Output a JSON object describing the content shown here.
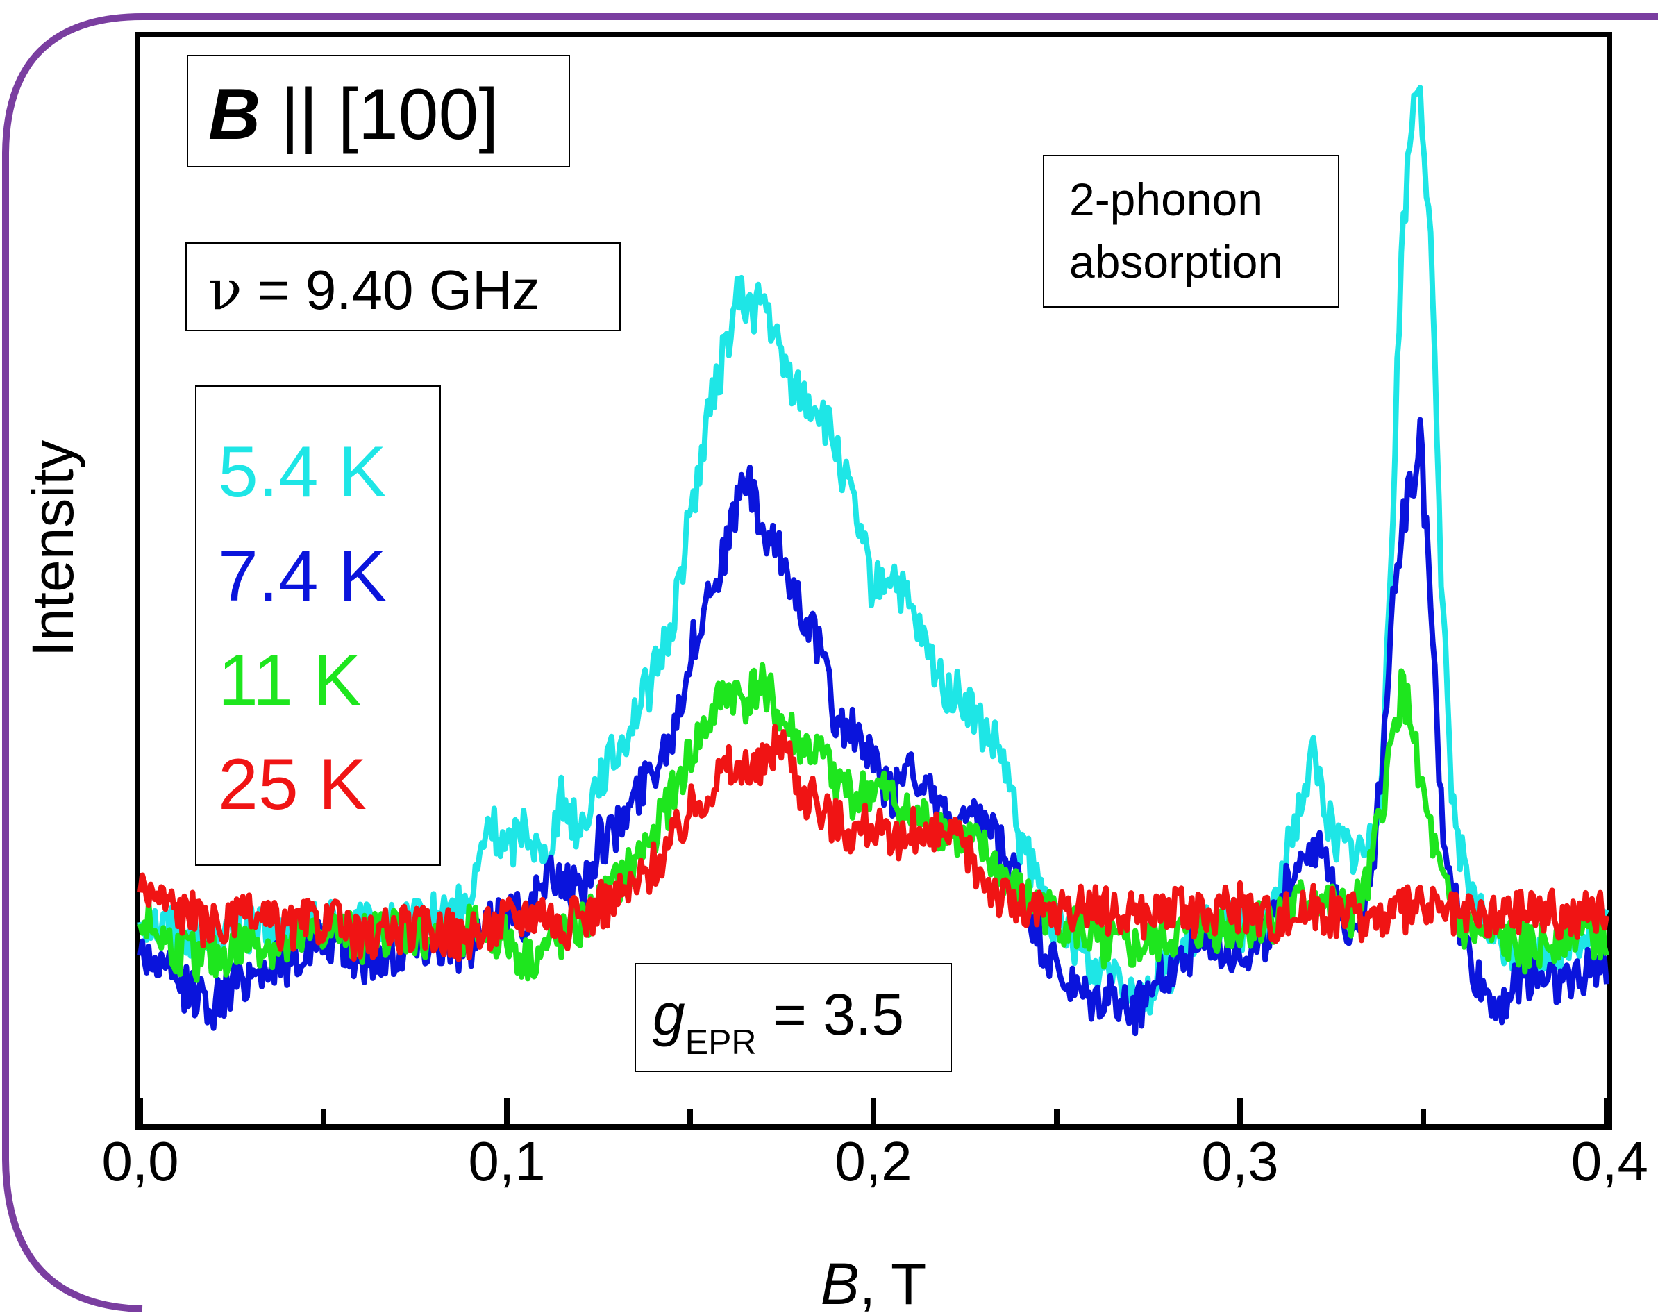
{
  "chart_data": {
    "type": "line",
    "xlabel_italic": "B",
    "xlabel_rest": ", T",
    "ylabel": "Intensity",
    "xlim": [
      0.0,
      0.4
    ],
    "ylim": [
      0,
      1
    ],
    "x_ticks": [
      "0,0",
      "0,1",
      "0,2",
      "0,3",
      "0,4"
    ],
    "x_tick_values": [
      0.0,
      0.1,
      0.2,
      0.3,
      0.4
    ],
    "x_minor_tick_values": [
      0.05,
      0.15,
      0.25,
      0.35
    ],
    "grid": false,
    "legend_position": "left",
    "annotations": {
      "orientation": {
        "bold_part": "B",
        "rest": " || [100]"
      },
      "frequency": {
        "symbol": "ν",
        "rest": " = 9.40 GHz"
      },
      "phonon": {
        "line1": "2-phonon",
        "line2": "absorption"
      },
      "g_factor": {
        "g": "g",
        "sub": "EPR",
        "rest": " = 3.5"
      }
    },
    "series": [
      {
        "name": "5.4 K",
        "color": "#1ee6e6",
        "points": [
          [
            0.0,
            0.19
          ],
          [
            0.01,
            0.18
          ],
          [
            0.02,
            0.17
          ],
          [
            0.03,
            0.18
          ],
          [
            0.04,
            0.17
          ],
          [
            0.05,
            0.19
          ],
          [
            0.06,
            0.18
          ],
          [
            0.07,
            0.18
          ],
          [
            0.08,
            0.19
          ],
          [
            0.09,
            0.2
          ],
          [
            0.095,
            0.28
          ],
          [
            0.1,
            0.25
          ],
          [
            0.105,
            0.28
          ],
          [
            0.11,
            0.24
          ],
          [
            0.115,
            0.3
          ],
          [
            0.12,
            0.27
          ],
          [
            0.125,
            0.32
          ],
          [
            0.13,
            0.34
          ],
          [
            0.135,
            0.38
          ],
          [
            0.14,
            0.41
          ],
          [
            0.145,
            0.46
          ],
          [
            0.15,
            0.56
          ],
          [
            0.155,
            0.65
          ],
          [
            0.16,
            0.72
          ],
          [
            0.163,
            0.76
          ],
          [
            0.167,
            0.75
          ],
          [
            0.17,
            0.76
          ],
          [
            0.175,
            0.7
          ],
          [
            0.18,
            0.67
          ],
          [
            0.185,
            0.66
          ],
          [
            0.19,
            0.62
          ],
          [
            0.195,
            0.56
          ],
          [
            0.2,
            0.49
          ],
          [
            0.205,
            0.51
          ],
          [
            0.21,
            0.47
          ],
          [
            0.215,
            0.43
          ],
          [
            0.22,
            0.4
          ],
          [
            0.225,
            0.39
          ],
          [
            0.23,
            0.36
          ],
          [
            0.235,
            0.34
          ],
          [
            0.24,
            0.26
          ],
          [
            0.245,
            0.22
          ],
          [
            0.25,
            0.18
          ],
          [
            0.255,
            0.17
          ],
          [
            0.26,
            0.14
          ],
          [
            0.265,
            0.15
          ],
          [
            0.27,
            0.13
          ],
          [
            0.275,
            0.12
          ],
          [
            0.28,
            0.14
          ],
          [
            0.285,
            0.16
          ],
          [
            0.29,
            0.18
          ],
          [
            0.295,
            0.19
          ],
          [
            0.3,
            0.18
          ],
          [
            0.305,
            0.18
          ],
          [
            0.31,
            0.2
          ],
          [
            0.315,
            0.28
          ],
          [
            0.32,
            0.34
          ],
          [
            0.325,
            0.27
          ],
          [
            0.33,
            0.25
          ],
          [
            0.335,
            0.25
          ],
          [
            0.338,
            0.3
          ],
          [
            0.341,
            0.5
          ],
          [
            0.344,
            0.8
          ],
          [
            0.347,
            0.93
          ],
          [
            0.349,
            0.97
          ],
          [
            0.352,
            0.8
          ],
          [
            0.355,
            0.5
          ],
          [
            0.358,
            0.3
          ],
          [
            0.362,
            0.21
          ],
          [
            0.37,
            0.17
          ],
          [
            0.38,
            0.15
          ],
          [
            0.39,
            0.17
          ],
          [
            0.4,
            0.18
          ]
        ]
      },
      {
        "name": "7.4 K",
        "color": "#0a14dc",
        "points": [
          [
            0.0,
            0.16
          ],
          [
            0.01,
            0.13
          ],
          [
            0.02,
            0.11
          ],
          [
            0.03,
            0.14
          ],
          [
            0.04,
            0.15
          ],
          [
            0.05,
            0.17
          ],
          [
            0.06,
            0.15
          ],
          [
            0.07,
            0.16
          ],
          [
            0.08,
            0.17
          ],
          [
            0.09,
            0.16
          ],
          [
            0.1,
            0.2
          ],
          [
            0.105,
            0.19
          ],
          [
            0.11,
            0.22
          ],
          [
            0.115,
            0.23
          ],
          [
            0.12,
            0.21
          ],
          [
            0.125,
            0.26
          ],
          [
            0.13,
            0.27
          ],
          [
            0.135,
            0.3
          ],
          [
            0.14,
            0.33
          ],
          [
            0.145,
            0.36
          ],
          [
            0.15,
            0.43
          ],
          [
            0.155,
            0.49
          ],
          [
            0.16,
            0.53
          ],
          [
            0.165,
            0.6
          ],
          [
            0.17,
            0.54
          ],
          [
            0.175,
            0.52
          ],
          [
            0.18,
            0.48
          ],
          [
            0.185,
            0.44
          ],
          [
            0.19,
            0.37
          ],
          [
            0.195,
            0.36
          ],
          [
            0.2,
            0.33
          ],
          [
            0.205,
            0.3
          ],
          [
            0.21,
            0.34
          ],
          [
            0.215,
            0.3
          ],
          [
            0.22,
            0.28
          ],
          [
            0.225,
            0.27
          ],
          [
            0.23,
            0.28
          ],
          [
            0.235,
            0.25
          ],
          [
            0.24,
            0.22
          ],
          [
            0.245,
            0.17
          ],
          [
            0.25,
            0.14
          ],
          [
            0.255,
            0.12
          ],
          [
            0.26,
            0.11
          ],
          [
            0.265,
            0.12
          ],
          [
            0.27,
            0.1
          ],
          [
            0.275,
            0.12
          ],
          [
            0.28,
            0.14
          ],
          [
            0.29,
            0.17
          ],
          [
            0.3,
            0.16
          ],
          [
            0.305,
            0.16
          ],
          [
            0.31,
            0.19
          ],
          [
            0.315,
            0.24
          ],
          [
            0.32,
            0.26
          ],
          [
            0.325,
            0.22
          ],
          [
            0.33,
            0.18
          ],
          [
            0.335,
            0.21
          ],
          [
            0.338,
            0.3
          ],
          [
            0.341,
            0.45
          ],
          [
            0.344,
            0.55
          ],
          [
            0.347,
            0.59
          ],
          [
            0.349,
            0.64
          ],
          [
            0.352,
            0.48
          ],
          [
            0.355,
            0.28
          ],
          [
            0.36,
            0.18
          ],
          [
            0.365,
            0.13
          ],
          [
            0.37,
            0.11
          ],
          [
            0.38,
            0.14
          ],
          [
            0.39,
            0.13
          ],
          [
            0.4,
            0.15
          ]
        ]
      },
      {
        "name": "11 K",
        "color": "#1ee61e",
        "points": [
          [
            0.0,
            0.19
          ],
          [
            0.01,
            0.16
          ],
          [
            0.02,
            0.15
          ],
          [
            0.03,
            0.17
          ],
          [
            0.04,
            0.16
          ],
          [
            0.05,
            0.18
          ],
          [
            0.06,
            0.17
          ],
          [
            0.07,
            0.18
          ],
          [
            0.08,
            0.17
          ],
          [
            0.09,
            0.18
          ],
          [
            0.1,
            0.17
          ],
          [
            0.105,
            0.15
          ],
          [
            0.11,
            0.16
          ],
          [
            0.115,
            0.17
          ],
          [
            0.12,
            0.18
          ],
          [
            0.125,
            0.2
          ],
          [
            0.13,
            0.22
          ],
          [
            0.135,
            0.24
          ],
          [
            0.14,
            0.27
          ],
          [
            0.145,
            0.3
          ],
          [
            0.15,
            0.34
          ],
          [
            0.155,
            0.37
          ],
          [
            0.16,
            0.4
          ],
          [
            0.165,
            0.39
          ],
          [
            0.17,
            0.41
          ],
          [
            0.175,
            0.37
          ],
          [
            0.18,
            0.35
          ],
          [
            0.185,
            0.34
          ],
          [
            0.19,
            0.32
          ],
          [
            0.195,
            0.3
          ],
          [
            0.2,
            0.31
          ],
          [
            0.205,
            0.3
          ],
          [
            0.21,
            0.28
          ],
          [
            0.215,
            0.28
          ],
          [
            0.22,
            0.27
          ],
          [
            0.225,
            0.26
          ],
          [
            0.23,
            0.25
          ],
          [
            0.235,
            0.23
          ],
          [
            0.24,
            0.21
          ],
          [
            0.25,
            0.19
          ],
          [
            0.26,
            0.17
          ],
          [
            0.27,
            0.16
          ],
          [
            0.28,
            0.17
          ],
          [
            0.29,
            0.18
          ],
          [
            0.3,
            0.18
          ],
          [
            0.31,
            0.19
          ],
          [
            0.32,
            0.21
          ],
          [
            0.325,
            0.2
          ],
          [
            0.33,
            0.19
          ],
          [
            0.335,
            0.22
          ],
          [
            0.338,
            0.28
          ],
          [
            0.341,
            0.34
          ],
          [
            0.344,
            0.4
          ],
          [
            0.347,
            0.37
          ],
          [
            0.35,
            0.3
          ],
          [
            0.355,
            0.22
          ],
          [
            0.36,
            0.18
          ],
          [
            0.37,
            0.17
          ],
          [
            0.38,
            0.16
          ],
          [
            0.39,
            0.18
          ],
          [
            0.4,
            0.17
          ]
        ]
      },
      {
        "name": "25 K",
        "color": "#f01414",
        "points": [
          [
            0.0,
            0.22
          ],
          [
            0.01,
            0.2
          ],
          [
            0.02,
            0.18
          ],
          [
            0.03,
            0.19
          ],
          [
            0.04,
            0.18
          ],
          [
            0.05,
            0.19
          ],
          [
            0.06,
            0.17
          ],
          [
            0.07,
            0.18
          ],
          [
            0.08,
            0.18
          ],
          [
            0.09,
            0.17
          ],
          [
            0.1,
            0.19
          ],
          [
            0.11,
            0.2
          ],
          [
            0.115,
            0.18
          ],
          [
            0.12,
            0.19
          ],
          [
            0.125,
            0.2
          ],
          [
            0.13,
            0.21
          ],
          [
            0.135,
            0.22
          ],
          [
            0.14,
            0.24
          ],
          [
            0.145,
            0.26
          ],
          [
            0.15,
            0.29
          ],
          [
            0.155,
            0.31
          ],
          [
            0.16,
            0.33
          ],
          [
            0.165,
            0.32
          ],
          [
            0.17,
            0.33
          ],
          [
            0.175,
            0.36
          ],
          [
            0.18,
            0.31
          ],
          [
            0.185,
            0.29
          ],
          [
            0.19,
            0.28
          ],
          [
            0.195,
            0.27
          ],
          [
            0.2,
            0.28
          ],
          [
            0.205,
            0.25
          ],
          [
            0.21,
            0.27
          ],
          [
            0.215,
            0.26
          ],
          [
            0.22,
            0.27
          ],
          [
            0.225,
            0.25
          ],
          [
            0.23,
            0.23
          ],
          [
            0.235,
            0.21
          ],
          [
            0.24,
            0.2
          ],
          [
            0.25,
            0.19
          ],
          [
            0.26,
            0.2
          ],
          [
            0.27,
            0.19
          ],
          [
            0.28,
            0.2
          ],
          [
            0.29,
            0.19
          ],
          [
            0.3,
            0.2
          ],
          [
            0.31,
            0.19
          ],
          [
            0.32,
            0.2
          ],
          [
            0.33,
            0.19
          ],
          [
            0.34,
            0.19
          ],
          [
            0.35,
            0.2
          ],
          [
            0.36,
            0.19
          ],
          [
            0.37,
            0.19
          ],
          [
            0.38,
            0.2
          ],
          [
            0.39,
            0.19
          ],
          [
            0.4,
            0.2
          ]
        ]
      }
    ]
  }
}
